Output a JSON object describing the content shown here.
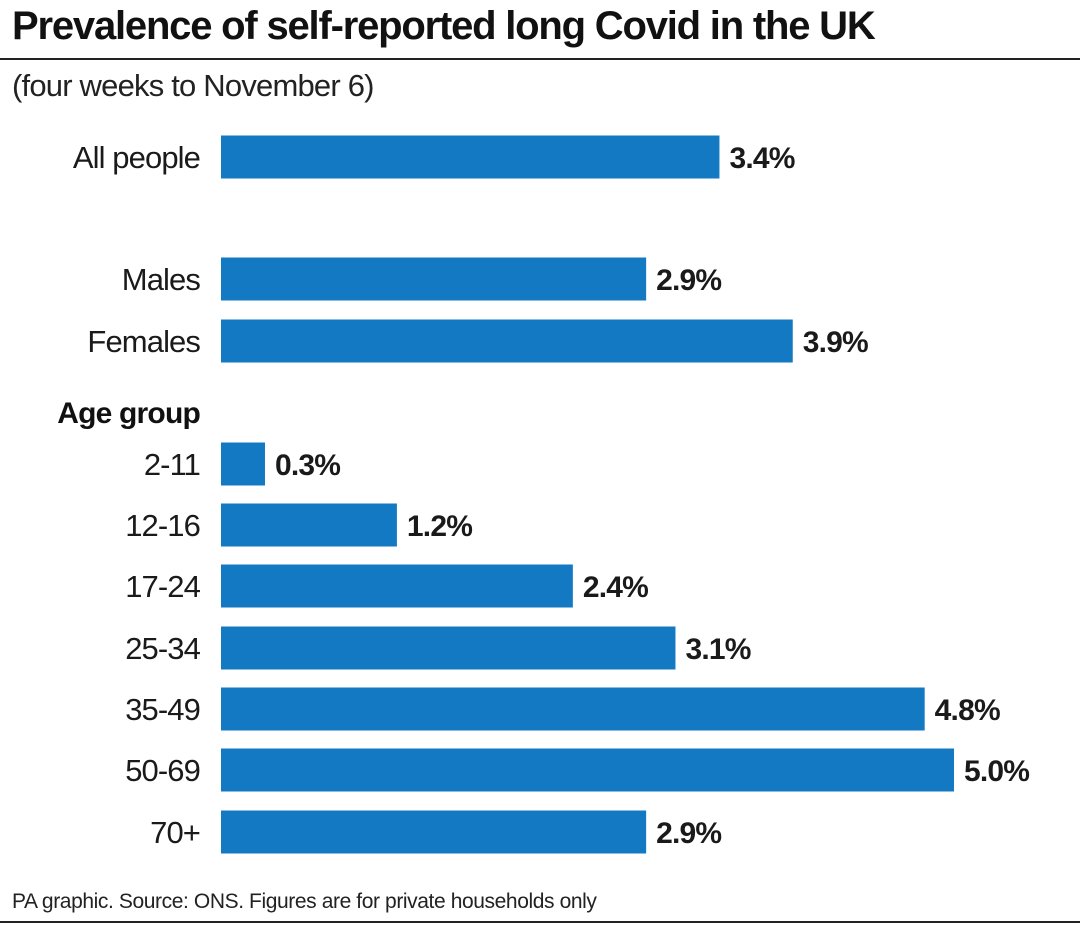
{
  "title": "Prevalence of self-reported long Covid in the UK",
  "subtitle": "(four weeks to November 6)",
  "footer": "PA graphic. Source: ONS. Figures are for private households only",
  "colors": {
    "bar": "#1479c3",
    "text": "#1a1a1a"
  },
  "chart_data": {
    "type": "bar",
    "orientation": "horizontal",
    "title": "Prevalence of self-reported long Covid in the UK",
    "subtitle": "(four weeks to November 6)",
    "group_heading": "Age group",
    "unit": "%",
    "xlim": [
      0,
      5.0
    ],
    "grid": false,
    "legend": "none",
    "bars": [
      {
        "category": "All people",
        "value": 3.4,
        "label": "3.4%"
      },
      {
        "category": "Males",
        "value": 2.9,
        "label": "2.9%"
      },
      {
        "category": "Females",
        "value": 3.9,
        "label": "3.9%"
      },
      {
        "category": "2-11",
        "value": 0.3,
        "label": "0.3%"
      },
      {
        "category": "12-16",
        "value": 1.2,
        "label": "1.2%"
      },
      {
        "category": "17-24",
        "value": 2.4,
        "label": "2.4%"
      },
      {
        "category": "25-34",
        "value": 3.1,
        "label": "3.1%"
      },
      {
        "category": "35-49",
        "value": 4.8,
        "label": "4.8%"
      },
      {
        "category": "50-69",
        "value": 5.0,
        "label": "5.0%"
      },
      {
        "category": "70+",
        "value": 2.9,
        "label": "2.9%"
      }
    ]
  }
}
